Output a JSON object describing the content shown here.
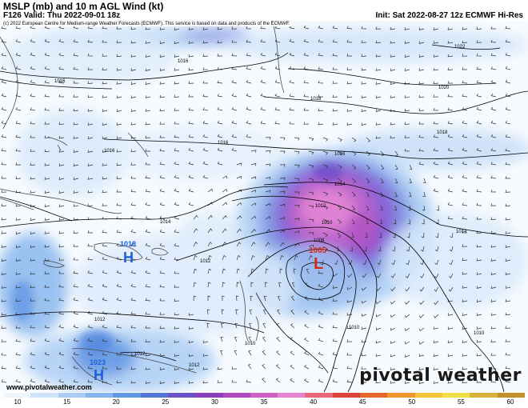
{
  "header": {
    "title": "MSLP (mb) and 10 m AGL Wind (kt)",
    "valid": "F126 Valid: Thu 2022-09-01 18z",
    "init": "Init: Sat 2022-08-27 12z ECMWF Hi-Res"
  },
  "copyright": "(c) 2022 European Centre for Medium-range Weather Forecasts (ECMWF). This service is based on data and products of the ECMWF.",
  "website": "www.pivotalweather.com",
  "brand": "pivotal weather",
  "isobars": {
    "labels": [
      "1022",
      "1020",
      "1018",
      "1018",
      "1016",
      "1016",
      "1016",
      "1016",
      "1016",
      "1014",
      "1014",
      "1014",
      "1012",
      "1012",
      "1012",
      "1010",
      "1010",
      "1010",
      "1010",
      "1008",
      "1012",
      "1012"
    ]
  },
  "pressure_centers": [
    {
      "type": "H",
      "value": "1018",
      "color": "#1e5fd6"
    },
    {
      "type": "L",
      "value": "1005",
      "color": "#d42a12"
    },
    {
      "type": "H",
      "value": "1023",
      "color": "#1e5fd6"
    }
  ],
  "colorbar": {
    "labels": [
      "10",
      "15",
      "20",
      "25",
      "30",
      "35",
      "40",
      "45",
      "50",
      "55",
      "60"
    ],
    "colors": [
      "#eef6fd",
      "#cde3fa",
      "#a9cdf5",
      "#82b4ee",
      "#5f99e4",
      "#5375d8",
      "#6a52c9",
      "#8a3fbf",
      "#b04ac0",
      "#d060c8",
      "#e684d4",
      "#e8677a",
      "#d9433b",
      "#e5662a",
      "#f0962b",
      "#f6c63a",
      "#f1df4a",
      "#d9b23a",
      "#c2902d"
    ]
  }
}
